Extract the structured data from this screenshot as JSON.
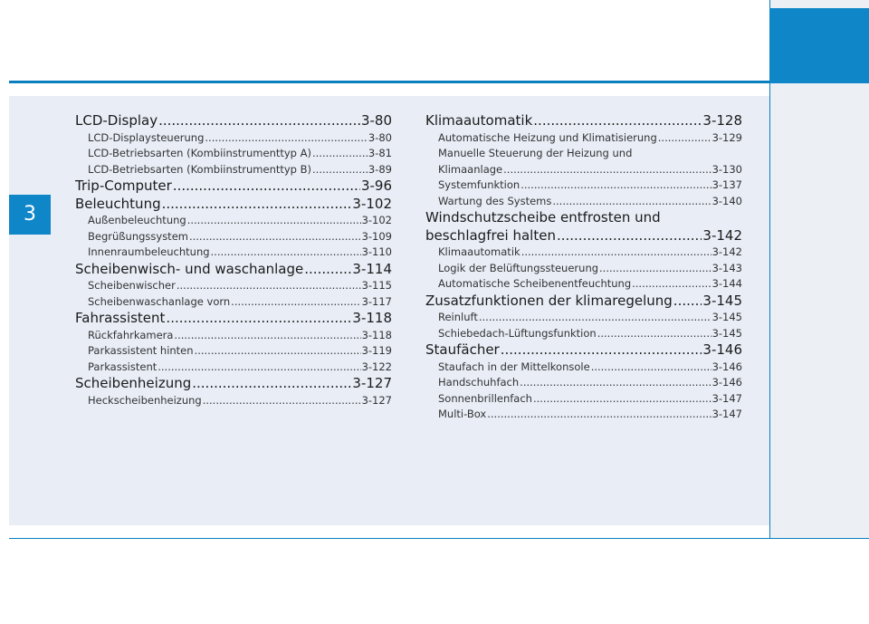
{
  "chapter": "3",
  "left_column": [
    {
      "kind": "h",
      "title": "LCD-Display",
      "page": "3-80"
    },
    {
      "kind": "s",
      "title": "LCD-Displaysteuerung",
      "page": "3-80"
    },
    {
      "kind": "s",
      "title": "LCD-Betriebsarten (Kombiinstrumenttyp A)",
      "page": "3-81"
    },
    {
      "kind": "s",
      "title": "LCD-Betriebsarten (Kombiinstrumenttyp B)",
      "page": "3-89"
    },
    {
      "kind": "h",
      "title": "Trip-Computer",
      "page": "3-96"
    },
    {
      "kind": "h",
      "title": "Beleuchtung",
      "page": "3-102"
    },
    {
      "kind": "s",
      "title": "Außenbeleuchtung",
      "page": "3-102"
    },
    {
      "kind": "s",
      "title": "Begrüßungssystem",
      "page": "3-109"
    },
    {
      "kind": "s",
      "title": "Innenraumbeleuchtung",
      "page": "3-110"
    },
    {
      "kind": "h",
      "title": "Scheibenwisch- und waschanlage",
      "page": "3-114"
    },
    {
      "kind": "s",
      "title": "Scheibenwischer",
      "page": "3-115"
    },
    {
      "kind": "s",
      "title": "Scheibenwaschanlage vorn",
      "page": "3-117"
    },
    {
      "kind": "h",
      "title": "Fahrassistent",
      "page": "3-118"
    },
    {
      "kind": "s",
      "title": "Rückfahrkamera",
      "page": "3-118"
    },
    {
      "kind": "s",
      "title": "Parkassistent hinten",
      "page": "3-119"
    },
    {
      "kind": "s",
      "title": "Parkassistent",
      "page": "3-122"
    },
    {
      "kind": "h",
      "title": "Scheibenheizung",
      "page": "3-127"
    },
    {
      "kind": "s",
      "title": "Heckscheibenheizung",
      "page": "3-127"
    }
  ],
  "right_column": {
    "klima": {
      "title": "Klimaautomatik",
      "page": "3-128"
    },
    "klima_sub1": {
      "title": "Automatische Heizung und Klimatisierung",
      "page": "3-129"
    },
    "klima_sub2_line1": "Manuelle Steuerung der Heizung und",
    "klima_sub2_line2": {
      "title": "Klimaanlage",
      "page": "3-130"
    },
    "klima_sub3": {
      "title": "Systemfunktion",
      "page": "3-137"
    },
    "klima_sub4": {
      "title": "Wartung des Systems",
      "page": "3-140"
    },
    "wind_line1": "Windschutzscheibe entfrosten und",
    "wind_line2": {
      "title": "beschlagfrei halten",
      "page": "3-142"
    },
    "wind_sub1": {
      "title": "Klimaautomatik",
      "page": "3-142"
    },
    "wind_sub2": {
      "title": "Logik der Belüftungssteuerung",
      "page": "3-143"
    },
    "wind_sub3": {
      "title": "Automatische Scheibenentfeuchtung",
      "page": "3-144"
    },
    "zusatz": {
      "title": "Zusatzfunktionen der klimaregelung",
      "page": "3-145"
    },
    "zusatz_sub1": {
      "title": "Reinluft",
      "page": "3-145"
    },
    "zusatz_sub2": {
      "title": "Schiebedach-Lüftungsfunktion",
      "page": "3-145"
    },
    "stau": {
      "title": "Staufächer",
      "page": "3-146"
    },
    "stau_sub1": {
      "title": "Staufach in der Mittelkonsole",
      "page": "3-146"
    },
    "stau_sub2": {
      "title": "Handschuhfach",
      "page": "3-146"
    },
    "stau_sub3": {
      "title": "Sonnenbrillenfach",
      "page": "3-147"
    },
    "stau_sub4": {
      "title": "Multi-Box",
      "page": "3-147"
    }
  }
}
